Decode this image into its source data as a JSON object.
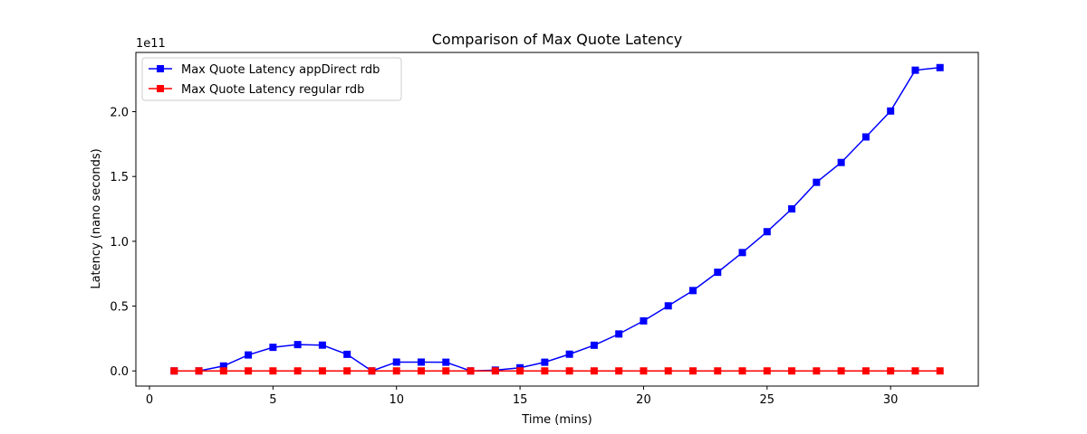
{
  "chart_data": {
    "type": "line",
    "title": "Comparison of Max Quote Latency",
    "xlabel": "Time (mins)",
    "ylabel": "Latency (nano seconds)",
    "y_offset_label": "1e11",
    "y_scale": 100000000000,
    "xlim": [
      -0.55,
      33.55
    ],
    "ylim": [
      -11700000000,
      245700000000
    ],
    "x_ticks": [
      0,
      5,
      10,
      15,
      20,
      25,
      30
    ],
    "y_ticks": [
      0,
      50000000000,
      100000000000,
      150000000000,
      200000000000
    ],
    "y_tick_labels": [
      "0.0",
      "0.5",
      "1.0",
      "1.5",
      "2.0"
    ],
    "grid": false,
    "legend": "top-left",
    "x": [
      1,
      2,
      3,
      4,
      5,
      6,
      7,
      8,
      9,
      10,
      11,
      12,
      13,
      14,
      15,
      16,
      17,
      18,
      19,
      20,
      21,
      22,
      23,
      24,
      25,
      26,
      27,
      28,
      29,
      30,
      31,
      32
    ],
    "series": [
      {
        "name": "Max Quote Latency appDirect rdb",
        "color": "#0000ff",
        "marker": "square",
        "values": [
          0,
          0,
          3800000000,
          12300000000,
          18200000000,
          20300000000,
          19900000000,
          12800000000,
          0,
          6800000000,
          6800000000,
          6700000000,
          0,
          600000000,
          2400000000,
          6700000000,
          12900000000,
          19800000000,
          28500000000,
          38600000000,
          50200000000,
          62000000000,
          76100000000,
          91300000000,
          107400000000,
          125000000000,
          145500000000,
          160800000000,
          180500000000,
          200500000000,
          232000000000,
          234000000000
        ]
      },
      {
        "name": "Max Quote Latency regular rdb",
        "color": "#ff0000",
        "marker": "square",
        "values": [
          0,
          0,
          0,
          0,
          0,
          0,
          0,
          0,
          0,
          0,
          0,
          0,
          0,
          0,
          0,
          0,
          0,
          0,
          0,
          0,
          0,
          0,
          0,
          0,
          0,
          0,
          0,
          0,
          0,
          0,
          0,
          0
        ]
      }
    ]
  }
}
